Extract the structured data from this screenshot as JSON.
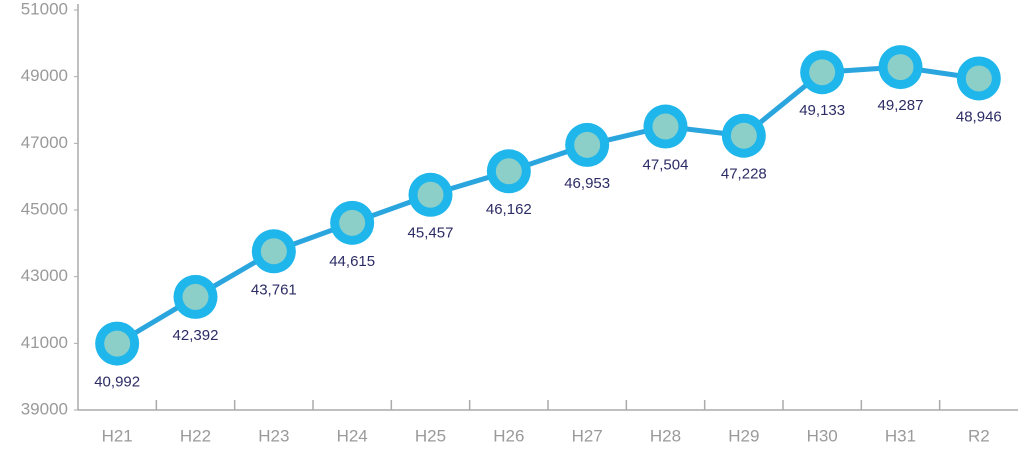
{
  "chart_data": {
    "type": "line",
    "categories": [
      "H21",
      "H22",
      "H23",
      "H24",
      "H25",
      "H26",
      "H27",
      "H28",
      "H29",
      "H30",
      "H31",
      "R2"
    ],
    "values": [
      40992,
      42392,
      43761,
      44615,
      45457,
      46162,
      46953,
      47504,
      47228,
      49133,
      49287,
      48946
    ],
    "value_labels": [
      "40,992",
      "42,392",
      "43,761",
      "44,615",
      "45,457",
      "46,162",
      "46,953",
      "47,504",
      "47,228",
      "49,133",
      "49,287",
      "48,946"
    ],
    "color": "#1fb6ec",
    "ylim": [
      39000,
      51000
    ],
    "yticks": [
      39000,
      41000,
      43000,
      45000,
      47000,
      49000,
      51000
    ]
  }
}
